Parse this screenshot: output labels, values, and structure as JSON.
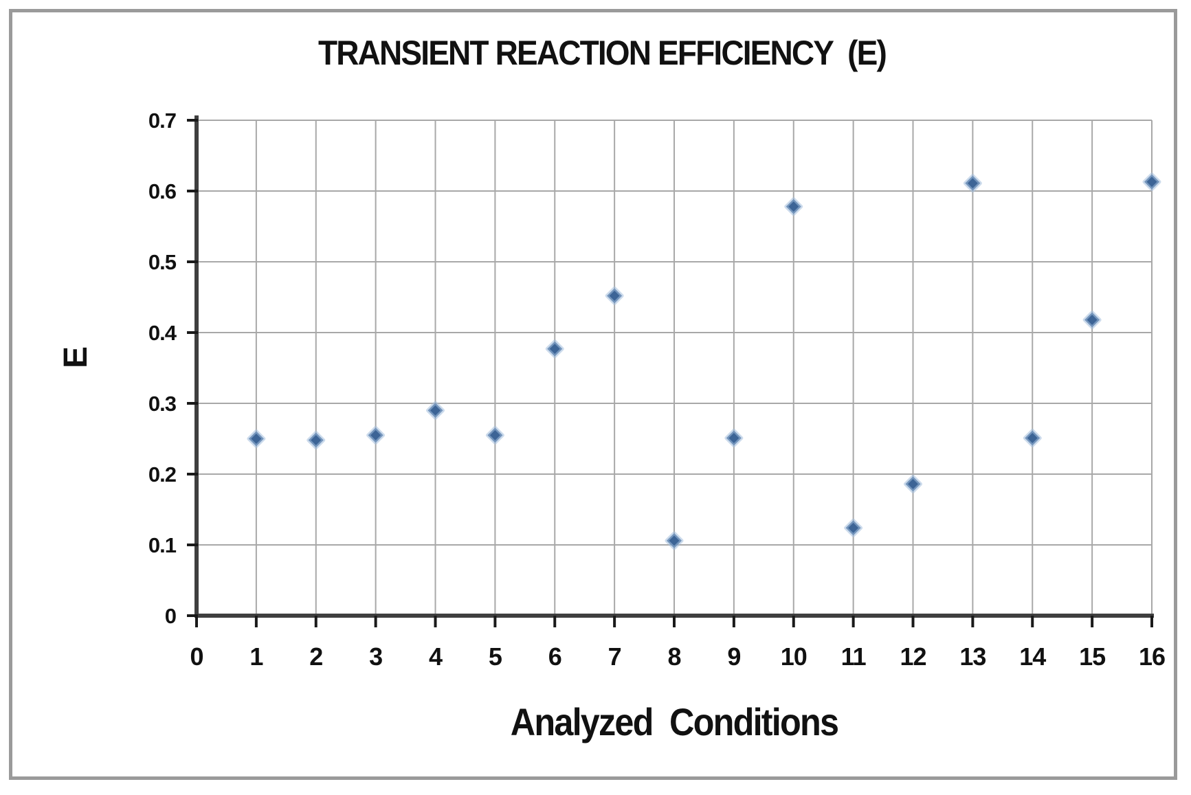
{
  "figure": {
    "background": "#ffffff",
    "border_color": "#9a9a9a"
  },
  "chart_data": {
    "type": "scatter",
    "title": "TRANSIENT REACTION EFFICIENCY  (E)",
    "xlabel": "Analyzed  Conditions",
    "ylabel": "E",
    "x": [
      1,
      2,
      3,
      4,
      5,
      6,
      7,
      8,
      9,
      10,
      11,
      12,
      13,
      14,
      15,
      16
    ],
    "y": [
      0.25,
      0.248,
      0.255,
      0.29,
      0.255,
      0.377,
      0.452,
      0.106,
      0.251,
      0.578,
      0.124,
      0.186,
      0.611,
      0.251,
      0.418,
      0.613
    ],
    "xlim": [
      0,
      16
    ],
    "ylim": [
      0,
      0.7
    ],
    "x_ticks": [
      0,
      1,
      2,
      3,
      4,
      5,
      6,
      7,
      8,
      9,
      10,
      11,
      12,
      13,
      14,
      15,
      16
    ],
    "x_tick_labels": [
      "0",
      "1",
      "2",
      "3",
      "4",
      "5",
      "6",
      "7",
      "8",
      "9",
      "10",
      "11",
      "12",
      "13",
      "14",
      "15",
      "16"
    ],
    "y_ticks": [
      0,
      0.1,
      0.2,
      0.3,
      0.4,
      0.5,
      0.6,
      0.7
    ],
    "y_tick_labels": [
      "0",
      "0.1",
      "0.2",
      "0.3",
      "0.4",
      "0.5",
      "0.6",
      "0.7"
    ],
    "grid": true,
    "legend": "none",
    "marker": {
      "shape": "diamond",
      "fill": "#3c6496",
      "halo": "#a3bedd"
    },
    "grid_color": "#a8a8a8",
    "axis_color": "#3f3f3f",
    "tick_color": "#1a1a1a",
    "text_color": "#111111"
  }
}
